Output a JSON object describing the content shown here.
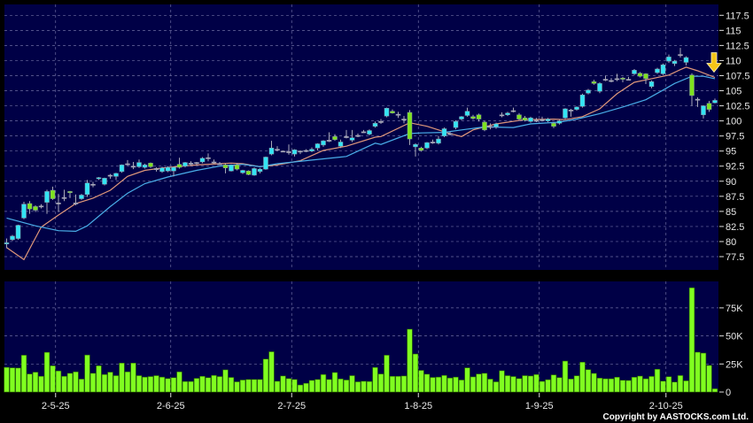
{
  "chart_data": {
    "type": "candlestick",
    "copyright": "Copyright by AASTOCKS.com Ltd.",
    "colors": {
      "background": "#000000",
      "panel": "#000046",
      "grid": "#6c6ca0",
      "up_candle": "#33e4f4",
      "down_candle": "#7ee21e",
      "doji": "#a8a8b8",
      "wick": "#a8a8b8",
      "volume": "#80ff20",
      "ma_short": "#e0987a",
      "ma_long": "#4aaee8",
      "arrow": "#f5c518"
    },
    "price_axis": {
      "ylim": [
        77.5,
        117.5
      ],
      "ticks": [
        "117.5",
        "115",
        "112.5",
        "110",
        "107.5",
        "105",
        "102.5",
        "100",
        "97.5",
        "95",
        "92.5",
        "90",
        "87.5",
        "85",
        "82.5",
        "80",
        "77.5"
      ],
      "grid": true
    },
    "volume_axis": {
      "ticks": [
        {
          "value": 75,
          "label": "75K"
        },
        {
          "value": 50,
          "label": "50K"
        },
        {
          "value": 25,
          "label": "25K"
        },
        {
          "value": 0,
          "label": "0"
        }
      ],
      "unit": "K"
    },
    "x_ticks": [
      {
        "label": "2-5-25",
        "at_bar": 8.5
      },
      {
        "label": "2-6-25",
        "at_bar": 28.5
      },
      {
        "label": "2-7-25",
        "at_bar": 49.5
      },
      {
        "label": "1-8-25",
        "at_bar": 71.5
      },
      {
        "label": "1-9-25",
        "at_bar": 92.5
      },
      {
        "label": "2-10-25",
        "at_bar": 114.5
      }
    ],
    "ohlc": [
      [
        79.6,
        80.5,
        78.9,
        79.8
      ],
      [
        80.3,
        81.1,
        80.1,
        80.9
      ],
      [
        80.5,
        82.8,
        80.3,
        82.7
      ],
      [
        83.9,
        86.6,
        83.7,
        86.2
      ],
      [
        86.3,
        86.7,
        84.6,
        85.4
      ],
      [
        85.8,
        86.0,
        84.9,
        85.2
      ],
      [
        85.8,
        86.2,
        85.5,
        85.9
      ],
      [
        86.5,
        88.6,
        84.6,
        88.3
      ],
      [
        88.5,
        89.1,
        86.9,
        87.1
      ],
      [
        86.3,
        87.9,
        84.9,
        86.4
      ],
      [
        87.2,
        88.6,
        86.7,
        87.3
      ],
      [
        88.3,
        88.4,
        87.2,
        88.1
      ],
      [
        86.3,
        87.8,
        86.0,
        86.4
      ],
      [
        87.1,
        87.9,
        86.9,
        87.7
      ],
      [
        87.8,
        90.2,
        87.4,
        89.7
      ],
      [
        89.4,
        89.9,
        89.0,
        89.5
      ],
      [
        90.4,
        90.7,
        90.2,
        90.6
      ],
      [
        89.5,
        90.6,
        89.3,
        90.5
      ],
      [
        90.9,
        91.2,
        90.4,
        91.0
      ],
      [
        90.8,
        91.4,
        90.2,
        91.3
      ],
      [
        91.6,
        92.8,
        91.4,
        92.7
      ],
      [
        92.8,
        93.5,
        92.6,
        92.9
      ],
      [
        92.4,
        93.2,
        92.0,
        92.5
      ],
      [
        92.4,
        93.6,
        92.2,
        93.1
      ],
      [
        92.3,
        92.9,
        92.1,
        92.7
      ],
      [
        93.0,
        93.1,
        92.2,
        92.4
      ],
      [
        92.0,
        92.3,
        91.6,
        92.1
      ],
      [
        91.6,
        92.4,
        91.4,
        92.2
      ],
      [
        91.7,
        92.5,
        91.5,
        92.3
      ],
      [
        91.7,
        92.4,
        90.8,
        92.3
      ],
      [
        92.8,
        93.9,
        92.1,
        92.3
      ],
      [
        92.5,
        93.2,
        92.3,
        93.1
      ],
      [
        93.0,
        93.3,
        92.6,
        93.0
      ],
      [
        93.0,
        93.2,
        92.7,
        93.1
      ],
      [
        93.2,
        94.0,
        93.0,
        93.8
      ],
      [
        93.9,
        94.6,
        93.3,
        93.9
      ],
      [
        93.2,
        93.6,
        92.9,
        93.2
      ],
      [
        92.9,
        93.2,
        92.7,
        92.8
      ],
      [
        92.7,
        92.9,
        91.3,
        92.2
      ],
      [
        91.7,
        92.8,
        91.6,
        92.7
      ],
      [
        92.7,
        93.0,
        91.8,
        92.0
      ],
      [
        91.4,
        91.9,
        91.2,
        91.8
      ],
      [
        91.7,
        91.8,
        91.0,
        91.1
      ],
      [
        91.0,
        92.3,
        90.9,
        92.1
      ],
      [
        91.6,
        92.2,
        91.3,
        92.0
      ],
      [
        92.0,
        94.1,
        91.9,
        94.0
      ],
      [
        94.5,
        96.7,
        94.3,
        95.5
      ],
      [
        95.3,
        95.8,
        95.0,
        95.3
      ],
      [
        95.0,
        95.1,
        94.8,
        95.0
      ],
      [
        94.9,
        96.1,
        94.4,
        94.9
      ],
      [
        94.5,
        95.3,
        94.1,
        95.2
      ],
      [
        94.9,
        95.1,
        94.5,
        95.0
      ],
      [
        95.1,
        95.3,
        94.8,
        95.0
      ],
      [
        95.0,
        95.6,
        94.8,
        95.3
      ],
      [
        95.5,
        96.3,
        95.1,
        96.2
      ],
      [
        96.0,
        96.8,
        95.7,
        96.7
      ],
      [
        96.8,
        98.1,
        96.5,
        96.8
      ],
      [
        97.4,
        97.8,
        96.7,
        96.9
      ],
      [
        95.8,
        96.9,
        95.5,
        96.5
      ],
      [
        97.4,
        98.5,
        97.1,
        97.4
      ],
      [
        96.8,
        98.5,
        96.5,
        97.2
      ],
      [
        97.6,
        97.9,
        97.3,
        97.6
      ],
      [
        98.2,
        98.5,
        98.0,
        98.2
      ],
      [
        97.8,
        98.6,
        97.6,
        98.4
      ],
      [
        99.1,
        99.9,
        98.9,
        99.6
      ],
      [
        99.9,
        100.3,
        99.5,
        99.9
      ],
      [
        100.8,
        102.2,
        100.6,
        102.1
      ],
      [
        101.6,
        101.9,
        101.2,
        101.3
      ],
      [
        101.1,
        101.5,
        100.5,
        101.1
      ],
      [
        100.3,
        100.8,
        99.6,
        100.3
      ],
      [
        101.4,
        101.8,
        96.0,
        97.0
      ],
      [
        95.7,
        96.3,
        94.1,
        96.1
      ],
      [
        95.5,
        95.7,
        94.9,
        95.1
      ],
      [
        95.5,
        96.5,
        95.3,
        96.4
      ],
      [
        96.5,
        96.9,
        96.2,
        96.5
      ],
      [
        96.3,
        97.5,
        96.1,
        97.0
      ],
      [
        97.5,
        98.9,
        97.3,
        98.7
      ],
      [
        97.9,
        98.2,
        97.6,
        97.9
      ],
      [
        98.9,
        100.1,
        98.6,
        99.9
      ],
      [
        100.3,
        100.8,
        100.1,
        100.7
      ],
      [
        100.9,
        102.2,
        100.7,
        101.6
      ],
      [
        100.7,
        101.0,
        100.2,
        100.4
      ],
      [
        101.0,
        101.2,
        99.9,
        100.3
      ],
      [
        99.8,
        100.0,
        98.3,
        98.5
      ],
      [
        99.1,
        99.6,
        98.6,
        99.1
      ],
      [
        99.0,
        99.7,
        98.7,
        99.5
      ],
      [
        101.0,
        101.4,
        100.6,
        101.0
      ],
      [
        101.0,
        101.5,
        100.8,
        101.3
      ],
      [
        101.7,
        102.2,
        101.4,
        101.7
      ],
      [
        101.0,
        101.3,
        100.0,
        100.3
      ],
      [
        100.5,
        100.8,
        99.9,
        100.1
      ],
      [
        99.9,
        100.7,
        99.7,
        100.5
      ],
      [
        100.1,
        100.5,
        99.8,
        100.1
      ],
      [
        100.2,
        100.7,
        99.9,
        100.2
      ],
      [
        100.0,
        100.5,
        99.8,
        100.3
      ],
      [
        99.6,
        99.8,
        98.8,
        99.1
      ],
      [
        99.6,
        100.2,
        99.4,
        100.0
      ],
      [
        100.5,
        102.1,
        100.3,
        102.0
      ],
      [
        101.8,
        102.0,
        100.7,
        101.8
      ],
      [
        101.9,
        102.4,
        101.7,
        102.3
      ],
      [
        102.4,
        104.5,
        102.2,
        104.3
      ],
      [
        104.6,
        105.3,
        104.4,
        105.1
      ],
      [
        106.5,
        106.8,
        106.0,
        106.2
      ],
      [
        104.9,
        106.4,
        104.6,
        106.2
      ],
      [
        106.9,
        107.5,
        106.6,
        106.9
      ],
      [
        106.7,
        107.1,
        106.4,
        106.7
      ],
      [
        106.9,
        107.8,
        106.6,
        107.0
      ],
      [
        107.1,
        107.3,
        106.4,
        106.9
      ],
      [
        106.9,
        107.3,
        106.7,
        106.9
      ],
      [
        107.8,
        108.6,
        107.6,
        108.4
      ],
      [
        107.9,
        108.1,
        107.2,
        107.4
      ],
      [
        107.8,
        107.9,
        106.1,
        107.0
      ],
      [
        105.7,
        106.7,
        105.4,
        106.5
      ],
      [
        108.0,
        108.8,
        107.8,
        108.6
      ],
      [
        107.8,
        109.5,
        107.6,
        109.3
      ],
      [
        109.9,
        111.0,
        109.6,
        110.6
      ],
      [
        109.5,
        110.1,
        109.1,
        109.9
      ],
      [
        111.0,
        112.1,
        110.5,
        111.0
      ],
      [
        109.7,
        110.7,
        109.2,
        110.5
      ],
      [
        107.6,
        107.9,
        102.5,
        104.2
      ],
      [
        103.6,
        103.9,
        102.3,
        103.6
      ],
      [
        101.0,
        102.6,
        100.4,
        102.5
      ],
      [
        102.9,
        103.3,
        101.5,
        101.9
      ],
      [
        103.0,
        103.7,
        102.9,
        103.4
      ]
    ],
    "volume_k": [
      22,
      21.6,
      21.4,
      32.8,
      16.1,
      17.7,
      14,
      35.4,
      23.4,
      18.8,
      14,
      16.7,
      18,
      11.5,
      33,
      16.7,
      23.4,
      15.6,
      17.7,
      14.6,
      25.8,
      18,
      25.8,
      14.6,
      13.3,
      13.8,
      14.6,
      13.3,
      12,
      12.8,
      18,
      9.4,
      9.4,
      12.2,
      14,
      12.8,
      14.8,
      13.8,
      19.8,
      13,
      9.1,
      10.7,
      11.2,
      11.2,
      11.2,
      29.4,
      35.9,
      9.6,
      14.3,
      12,
      11.2,
      6.3,
      7.8,
      10.4,
      11.2,
      15.6,
      11.2,
      17.4,
      11.7,
      10.7,
      14.6,
      9.1,
      9.6,
      9.4,
      21.9,
      16.1,
      32.8,
      14,
      14,
      14.3,
      56,
      33.9,
      19.3,
      15.9,
      13,
      13.3,
      14.8,
      12.5,
      13.3,
      10.7,
      21.6,
      13.5,
      16.1,
      16.7,
      11.5,
      9.1,
      19,
      14.6,
      13.8,
      12,
      14.6,
      14.3,
      15.6,
      9.5,
      11,
      15.3,
      12.9,
      27.6,
      11.6,
      14.5,
      26.6,
      20,
      16.6,
      12.4,
      11.8,
      11.8,
      13.2,
      10.5,
      10.3,
      13.2,
      14.2,
      11.8,
      13.9,
      20.3,
      9.7,
      13.7,
      8.9,
      14.7,
      10,
      92.9,
      35.5,
      34.7,
      23.7,
      2.9
    ],
    "moving_averages": [
      {
        "color_key": "ma_short",
        "points": [
          [
            0,
            79.0
          ],
          [
            3,
            77.0
          ],
          [
            6,
            82.4
          ],
          [
            9,
            84.4
          ],
          [
            12,
            86.3
          ],
          [
            15,
            87.2
          ],
          [
            18,
            88.5
          ],
          [
            21,
            90.8
          ],
          [
            24,
            91.8
          ],
          [
            27,
            92.2
          ],
          [
            33,
            92.7
          ],
          [
            39,
            93.0
          ],
          [
            41,
            92.9
          ],
          [
            44,
            92.4
          ],
          [
            47,
            92.7
          ],
          [
            51,
            93.4
          ],
          [
            55,
            95.1
          ],
          [
            59,
            95.8
          ],
          [
            64,
            97.3
          ],
          [
            65,
            97.4
          ],
          [
            70,
            99.7
          ],
          [
            73,
            99.1
          ],
          [
            77,
            97.9
          ],
          [
            79,
            97.4
          ],
          [
            81,
            98.5
          ],
          [
            85,
            99.5
          ],
          [
            90,
            100.2
          ],
          [
            95,
            100.3
          ],
          [
            97,
            100.2
          ],
          [
            100,
            100.7
          ],
          [
            103,
            102.0
          ],
          [
            106,
            104.5
          ],
          [
            109,
            106.4
          ],
          [
            112,
            107.0
          ],
          [
            115,
            107.6
          ],
          [
            117,
            108.5
          ],
          [
            118,
            108.9
          ],
          [
            120,
            108.3
          ],
          [
            123,
            107.2
          ]
        ]
      },
      {
        "color_key": "ma_long",
        "points": [
          [
            0,
            83.9
          ],
          [
            5,
            82.6
          ],
          [
            9,
            81.8
          ],
          [
            12,
            81.7
          ],
          [
            14,
            82.6
          ],
          [
            18,
            85.8
          ],
          [
            21,
            88.0
          ],
          [
            24,
            89.6
          ],
          [
            28,
            90.7
          ],
          [
            33,
            91.8
          ],
          [
            37,
            92.5
          ],
          [
            41,
            92.8
          ],
          [
            44,
            92.4
          ],
          [
            47,
            92.9
          ],
          [
            53,
            93.5
          ],
          [
            59,
            94.1
          ],
          [
            64,
            96.3
          ],
          [
            65,
            96.1
          ],
          [
            70,
            97.9
          ],
          [
            72,
            98.0
          ],
          [
            76,
            98.1
          ],
          [
            79,
            98.5
          ],
          [
            83,
            99.0
          ],
          [
            88,
            98.9
          ],
          [
            91,
            99.5
          ],
          [
            96,
            99.8
          ],
          [
            99,
            100.3
          ],
          [
            103,
            101.2
          ],
          [
            107,
            102.3
          ],
          [
            111,
            103.5
          ],
          [
            114,
            105.1
          ],
          [
            116,
            106.2
          ],
          [
            119,
            107.4
          ],
          [
            121,
            107.4
          ],
          [
            123,
            107.0
          ]
        ]
      }
    ],
    "annotation": {
      "type": "down-arrow",
      "at_bar": 123,
      "above_price": 107.5
    }
  }
}
